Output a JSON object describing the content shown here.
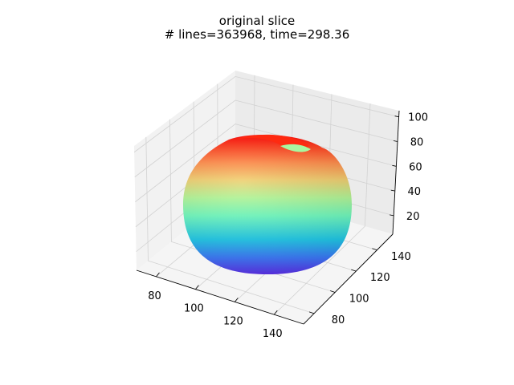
{
  "chart_data": {
    "type": "surface3d",
    "title": "original slice",
    "subtitle": "# lines=363968, time=298.36",
    "xlabel": "",
    "ylabel": "",
    "zlabel": "",
    "x_ticks": [
      "80",
      "100",
      "120",
      "140"
    ],
    "y_ticks": [
      "80",
      "100",
      "120",
      "140"
    ],
    "z_ticks": [
      "20",
      "40",
      "60",
      "80",
      "100"
    ],
    "xlim": [
      70,
      155
    ],
    "ylim": [
      70,
      155
    ],
    "zlim": [
      5,
      105
    ],
    "grid": true,
    "colormap": "rainbow",
    "surface": {
      "shape": "truncated ellipsoid slice",
      "z_range": [
        5,
        100
      ],
      "color_by": "z"
    }
  }
}
